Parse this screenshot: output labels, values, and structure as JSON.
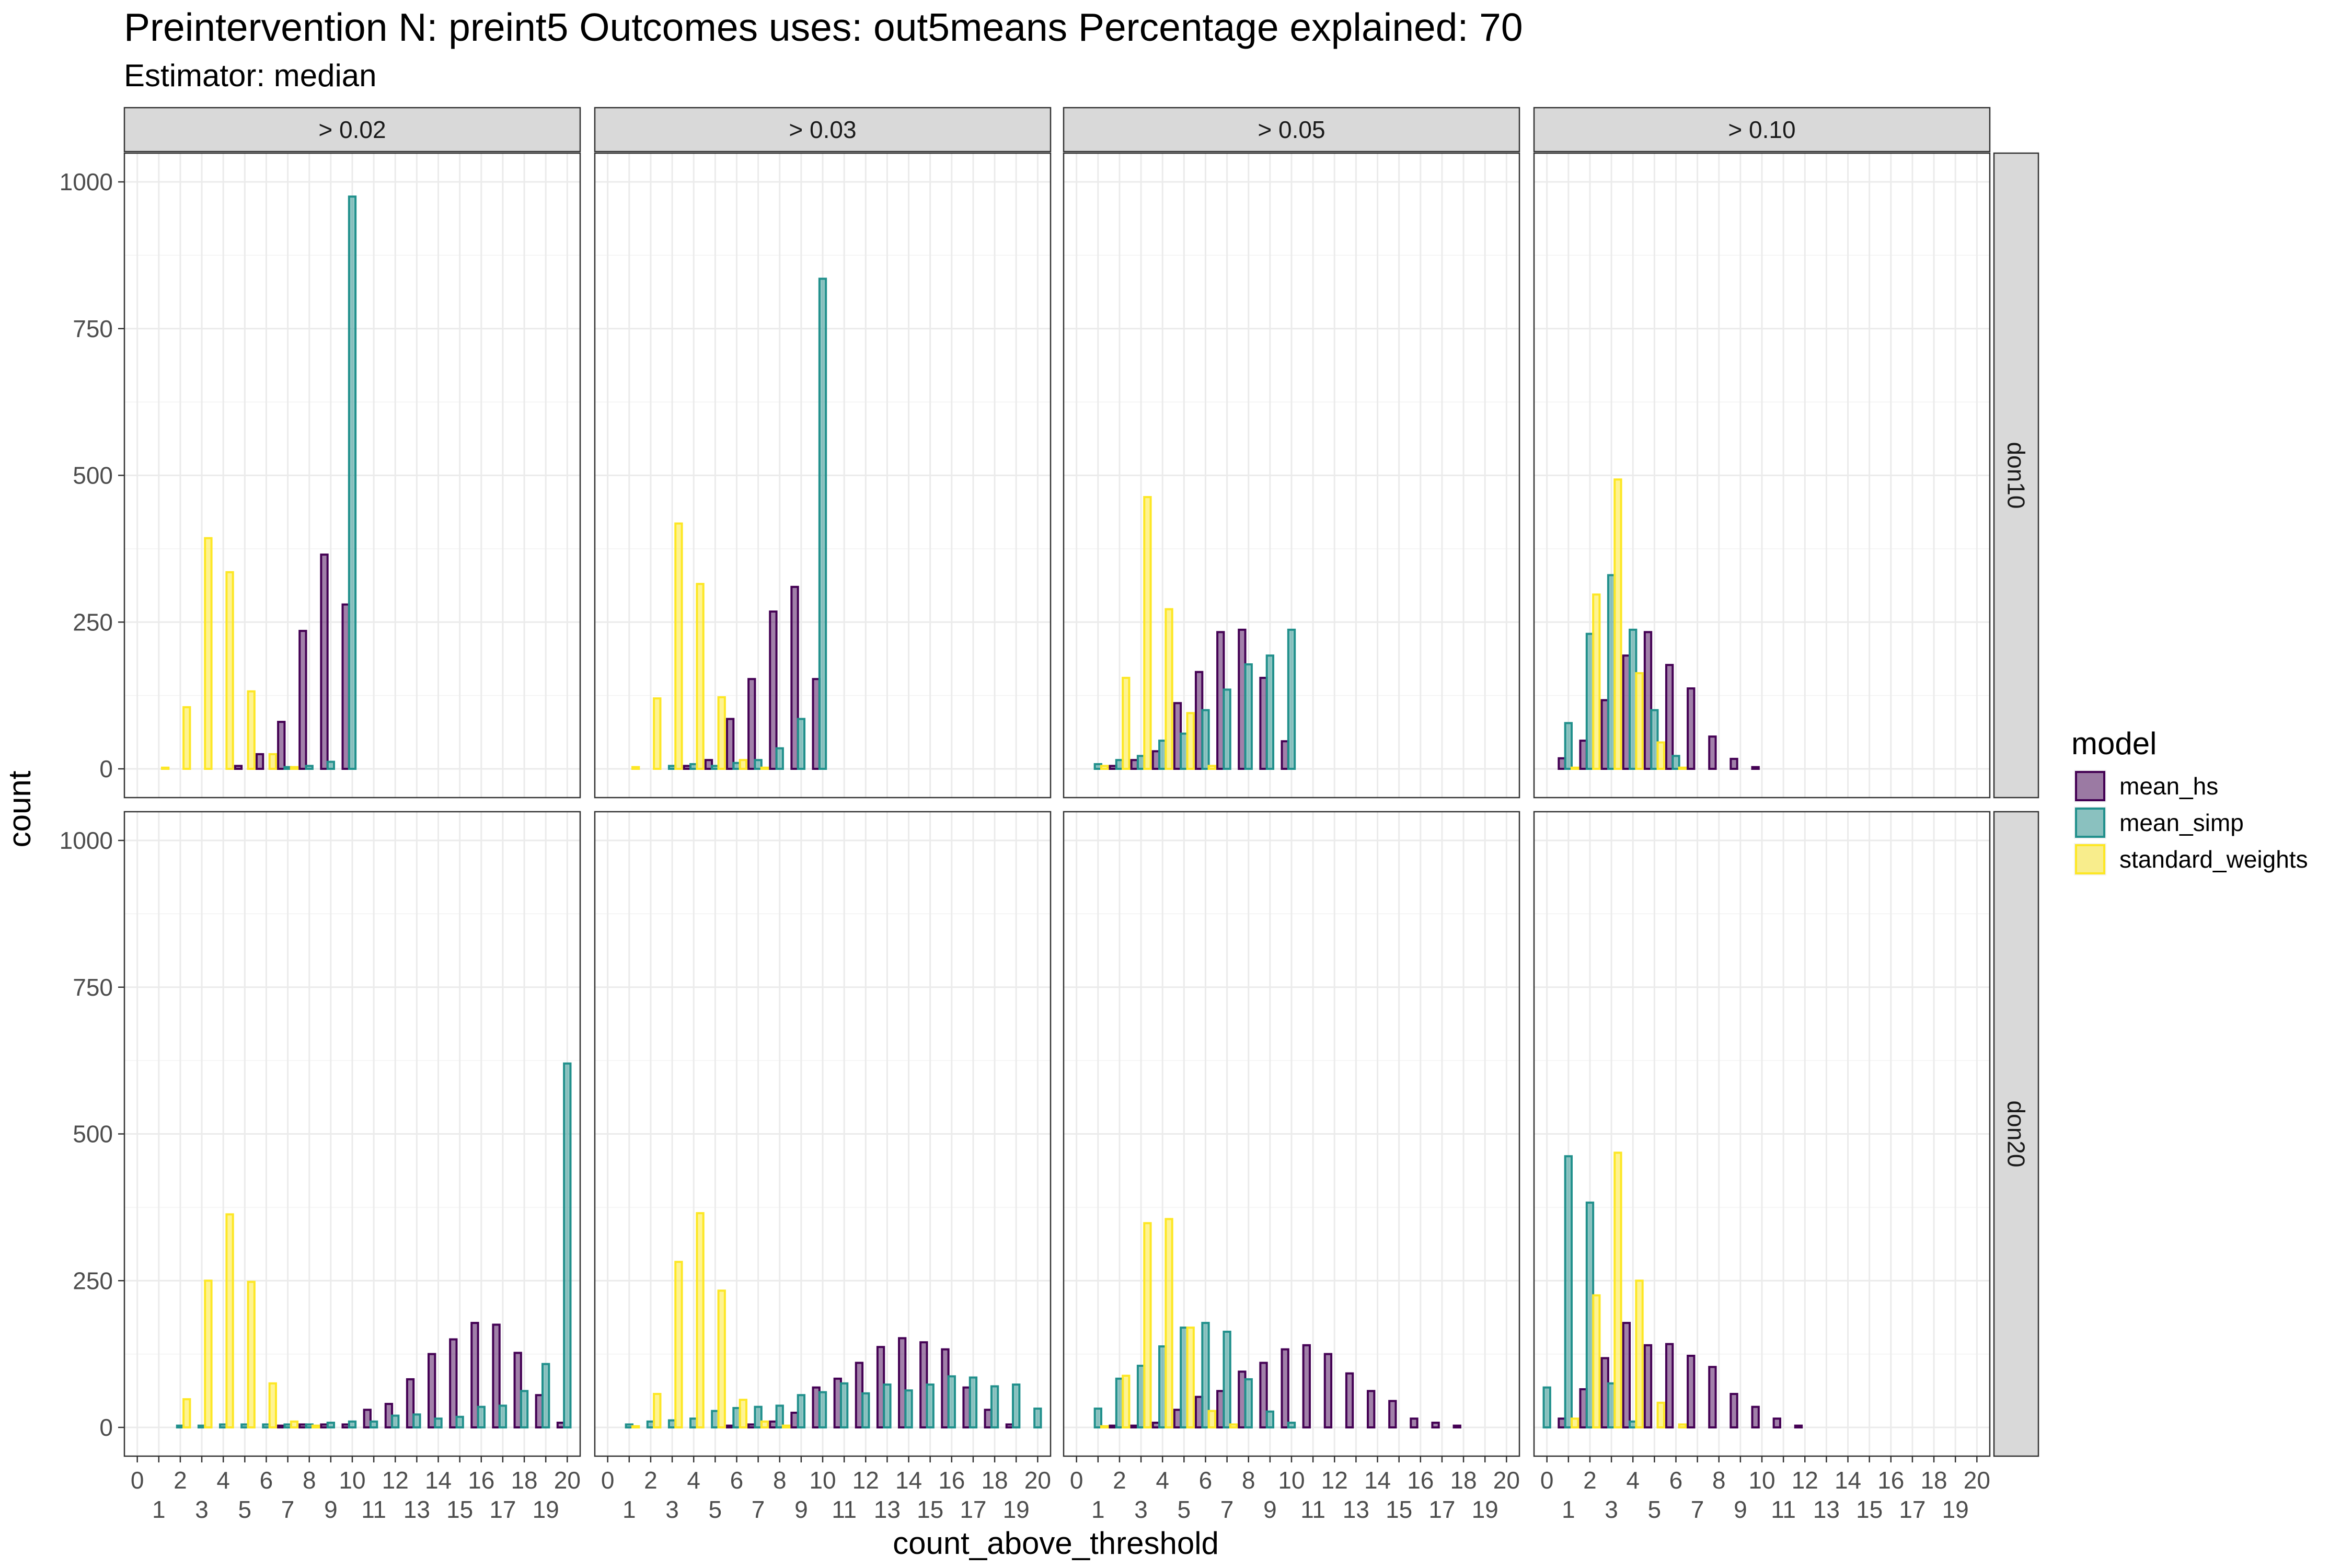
{
  "title": "Preintervention N: preint5 Outcomes uses: out5means Percentage explained: 70",
  "subtitle": "Estimator: median",
  "chart_data": {
    "type": "bar",
    "layout": "dodged bars, faceted grid (rows × columns)",
    "xlabel": "count_above_threshold",
    "ylabel": "count",
    "x": [
      0,
      1,
      2,
      3,
      4,
      5,
      6,
      7,
      8,
      9,
      10,
      11,
      12,
      13,
      14,
      15,
      16,
      17,
      18,
      19,
      20
    ],
    "ylim": [
      0,
      1000
    ],
    "yticks": [
      0,
      250,
      500,
      750,
      1000
    ],
    "grid": true,
    "legend": {
      "title": "model",
      "position": "right",
      "entries": [
        {
          "name": "mean_hs",
          "fill": "#440154",
          "stroke": "#440154"
        },
        {
          "name": "mean_simp",
          "fill": "#21908C",
          "stroke": "#21908C"
        },
        {
          "name": "standard_weights",
          "fill": "#FDE725",
          "stroke": "#FDE725"
        }
      ]
    },
    "columns": [
      "> 0.02",
      "> 0.03",
      "> 0.05",
      "> 0.10"
    ],
    "rows": [
      "don10",
      "don20"
    ],
    "panels": [
      {
        "row": "don10",
        "col": "> 0.02",
        "series": [
          {
            "name": "mean_hs",
            "values": [
              0,
              0,
              0,
              0,
              0,
              5,
              25,
              80,
              235,
              365,
              280,
              0,
              0,
              0,
              0,
              0,
              0,
              0,
              0,
              0,
              0
            ]
          },
          {
            "name": "mean_simp",
            "values": [
              0,
              0,
              0,
              0,
              0,
              0,
              0,
              3,
              5,
              12,
              975,
              0,
              0,
              0,
              0,
              0,
              0,
              0,
              0,
              0,
              0
            ]
          },
          {
            "name": "standard_weights",
            "values": [
              0,
              2,
              105,
              393,
              335,
              132,
              25,
              3,
              0,
              0,
              0,
              0,
              0,
              0,
              0,
              0,
              0,
              0,
              0,
              0,
              0
            ]
          }
        ]
      },
      {
        "row": "don10",
        "col": "> 0.03",
        "series": [
          {
            "name": "mean_hs",
            "values": [
              0,
              0,
              0,
              0,
              5,
              15,
              85,
              153,
              268,
              310,
              153,
              0,
              0,
              0,
              0,
              0,
              0,
              0,
              0,
              0,
              0
            ]
          },
          {
            "name": "mean_simp",
            "values": [
              0,
              0,
              0,
              5,
              8,
              5,
              10,
              15,
              35,
              85,
              835,
              0,
              0,
              0,
              0,
              0,
              0,
              0,
              0,
              0,
              0
            ]
          },
          {
            "name": "standard_weights",
            "values": [
              0,
              3,
              120,
              418,
              315,
              122,
              15,
              2,
              0,
              0,
              0,
              0,
              0,
              0,
              0,
              0,
              0,
              0,
              0,
              0,
              0
            ]
          }
        ]
      },
      {
        "row": "don10",
        "col": "> 0.05",
        "series": [
          {
            "name": "mean_hs",
            "values": [
              0,
              0,
              5,
              15,
              30,
              112,
              165,
              233,
              237,
              155,
              47,
              0,
              0,
              0,
              0,
              0,
              0,
              0,
              0,
              0,
              0
            ]
          },
          {
            "name": "mean_simp",
            "values": [
              0,
              8,
              15,
              22,
              48,
              60,
              100,
              135,
              178,
              193,
              237,
              0,
              0,
              0,
              0,
              0,
              0,
              0,
              0,
              0,
              0
            ]
          },
          {
            "name": "standard_weights",
            "values": [
              0,
              5,
              155,
              463,
              272,
              95,
              5,
              0,
              0,
              0,
              0,
              0,
              0,
              0,
              0,
              0,
              0,
              0,
              0,
              0,
              0
            ]
          }
        ]
      },
      {
        "row": "don10",
        "col": "> 0.10",
        "series": [
          {
            "name": "mean_hs",
            "values": [
              0,
              18,
              48,
              117,
              193,
              233,
              177,
              137,
              55,
              17,
              3,
              0,
              0,
              0,
              0,
              0,
              0,
              0,
              0,
              0,
              0
            ]
          },
          {
            "name": "mean_simp",
            "values": [
              0,
              78,
              230,
              330,
              237,
              100,
              22,
              0,
              0,
              0,
              0,
              0,
              0,
              0,
              0,
              0,
              0,
              0,
              0,
              0,
              0
            ]
          },
          {
            "name": "standard_weights",
            "values": [
              0,
              2,
              297,
              493,
              163,
              45,
              2,
              0,
              0,
              0,
              0,
              0,
              0,
              0,
              0,
              0,
              0,
              0,
              0,
              0,
              0
            ]
          }
        ]
      },
      {
        "row": "don20",
        "col": "> 0.02",
        "series": [
          {
            "name": "mean_hs",
            "values": [
              0,
              0,
              0,
              0,
              0,
              0,
              0,
              3,
              5,
              5,
              5,
              30,
              40,
              82,
              125,
              150,
              178,
              175,
              127,
              55,
              8
            ]
          },
          {
            "name": "mean_simp",
            "values": [
              0,
              0,
              3,
              3,
              5,
              5,
              5,
              5,
              5,
              8,
              10,
              10,
              20,
              22,
              15,
              18,
              35,
              37,
              62,
              108,
              620
            ]
          },
          {
            "name": "standard_weights",
            "values": [
              0,
              0,
              48,
              250,
              363,
              248,
              75,
              10,
              3,
              0,
              0,
              0,
              0,
              0,
              0,
              0,
              0,
              0,
              0,
              0,
              0
            ]
          }
        ]
      },
      {
        "row": "don20",
        "col": "> 0.03",
        "series": [
          {
            "name": "mean_hs",
            "values": [
              0,
              0,
              0,
              0,
              0,
              0,
              3,
              5,
              10,
              25,
              68,
              83,
              110,
              137,
              152,
              145,
              133,
              68,
              30,
              5,
              0
            ]
          },
          {
            "name": "mean_simp",
            "values": [
              0,
              5,
              10,
              12,
              15,
              28,
              33,
              35,
              37,
              55,
              60,
              75,
              58,
              73,
              63,
              73,
              87,
              85,
              70,
              73,
              32
            ]
          },
          {
            "name": "standard_weights",
            "values": [
              0,
              2,
              57,
              282,
              365,
              233,
              47,
              10,
              3,
              0,
              0,
              0,
              0,
              0,
              0,
              0,
              0,
              0,
              0,
              0,
              0
            ]
          }
        ]
      },
      {
        "row": "don20",
        "col": "> 0.05",
        "series": [
          {
            "name": "mean_hs",
            "values": [
              0,
              0,
              3,
              3,
              8,
              30,
              52,
              62,
              95,
              110,
              133,
              140,
              125,
              92,
              62,
              45,
              15,
              8,
              3,
              0,
              0
            ]
          },
          {
            "name": "mean_simp",
            "values": [
              0,
              32,
              83,
              105,
              138,
              170,
              178,
              163,
              82,
              27,
              8,
              0,
              0,
              0,
              0,
              0,
              0,
              0,
              0,
              0,
              0
            ]
          },
          {
            "name": "standard_weights",
            "values": [
              0,
              2,
              88,
              348,
              355,
              170,
              28,
              5,
              0,
              0,
              0,
              0,
              0,
              0,
              0,
              0,
              0,
              0,
              0,
              0,
              0
            ]
          }
        ]
      },
      {
        "row": "don20",
        "col": "> 0.10",
        "series": [
          {
            "name": "mean_hs",
            "values": [
              0,
              15,
              65,
              118,
              178,
              140,
              142,
              122,
              103,
              57,
              35,
              15,
              3,
              0,
              0,
              0,
              0,
              0,
              0,
              0,
              0
            ]
          },
          {
            "name": "mean_simp",
            "values": [
              68,
              462,
              383,
              75,
              10,
              0,
              0,
              0,
              0,
              0,
              0,
              0,
              0,
              0,
              0,
              0,
              0,
              0,
              0,
              0,
              0
            ]
          },
          {
            "name": "standard_weights",
            "values": [
              0,
              15,
              225,
              468,
              250,
              42,
              5,
              0,
              0,
              0,
              0,
              0,
              0,
              0,
              0,
              0,
              0,
              0,
              0,
              0,
              0
            ]
          }
        ]
      }
    ]
  }
}
